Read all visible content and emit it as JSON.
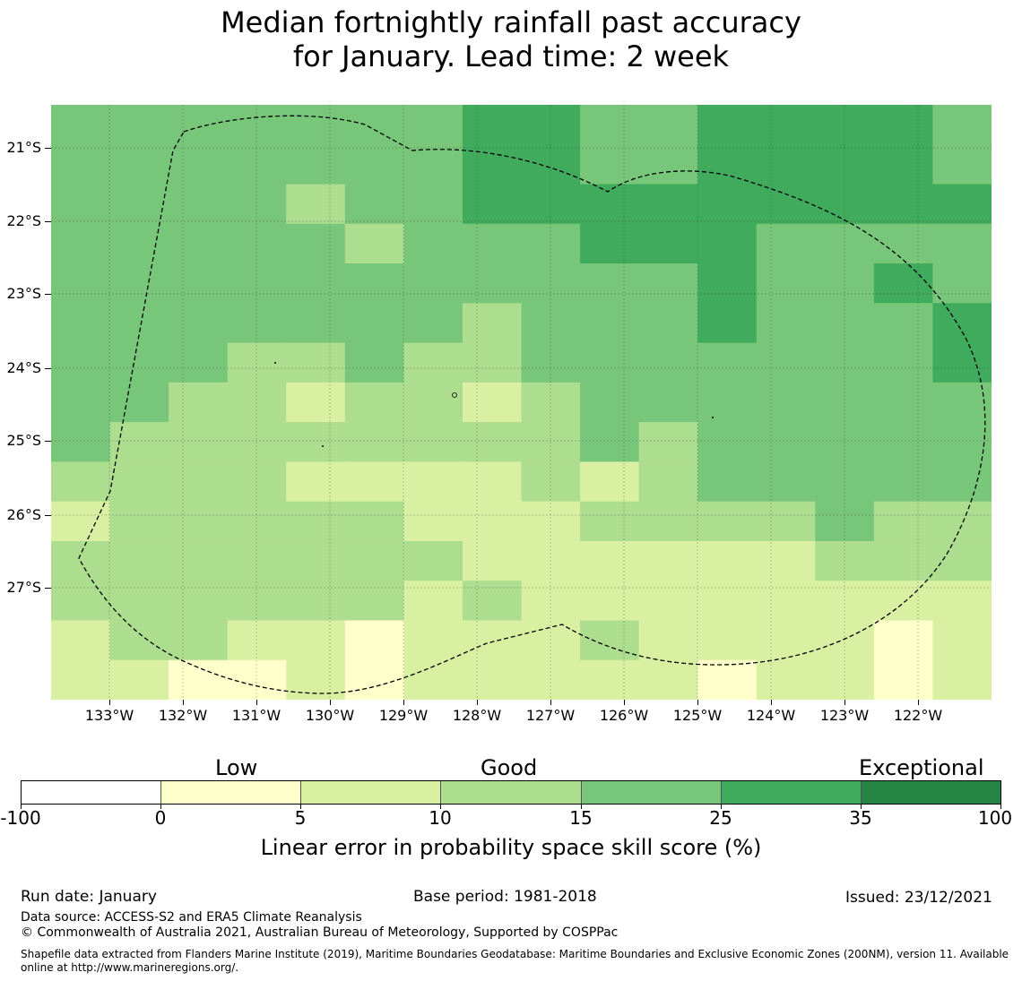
{
  "title": {
    "line1": "Median fortnightly rainfall past accuracy",
    "line2": "for January. Lead time: 2 week"
  },
  "map": {
    "lon_labels": [
      "133°W",
      "132°W",
      "131°W",
      "130°W",
      "129°W",
      "128°W",
      "127°W",
      "126°W",
      "125°W",
      "124°W",
      "123°W",
      "122°W"
    ],
    "lat_labels": [
      "21°S",
      "22°S",
      "23°S",
      "24°S",
      "25°S",
      "26°S",
      "27°S"
    ],
    "boundary_style": "dashed",
    "grid": {
      "columns_lon_west": [
        133.5,
        132.7,
        131.9,
        131.1,
        130.3,
        129.5,
        128.7,
        127.9,
        127.1,
        126.3,
        125.5,
        124.7,
        123.9,
        123.1,
        122.3,
        121.5
      ],
      "rows_lat_south": [
        20.6,
        21.0,
        21.5,
        22.1,
        22.6,
        23.2,
        23.7,
        24.3,
        24.8,
        25.4,
        25.9,
        26.5,
        27.0,
        27.6,
        28.1
      ],
      "skill_class_rows": [
        [
          4,
          4,
          4,
          4,
          4,
          4,
          4,
          5,
          5,
          4,
          4,
          5,
          5,
          5,
          5,
          4
        ],
        [
          4,
          4,
          4,
          4,
          4,
          4,
          4,
          5,
          5,
          4,
          4,
          5,
          5,
          5,
          5,
          4
        ],
        [
          4,
          4,
          4,
          4,
          3,
          4,
          4,
          5,
          5,
          5,
          5,
          5,
          5,
          5,
          5,
          5
        ],
        [
          4,
          4,
          4,
          4,
          4,
          3,
          4,
          4,
          4,
          5,
          5,
          5,
          4,
          4,
          4,
          4
        ],
        [
          4,
          4,
          4,
          4,
          4,
          4,
          4,
          4,
          4,
          4,
          4,
          5,
          4,
          4,
          5,
          4
        ],
        [
          4,
          4,
          4,
          4,
          4,
          4,
          4,
          3,
          4,
          4,
          4,
          5,
          4,
          4,
          4,
          5
        ],
        [
          4,
          4,
          4,
          3,
          3,
          4,
          3,
          3,
          4,
          4,
          4,
          4,
          4,
          4,
          4,
          5
        ],
        [
          4,
          4,
          3,
          3,
          2,
          3,
          3,
          2,
          3,
          4,
          4,
          4,
          4,
          4,
          4,
          4
        ],
        [
          4,
          3,
          3,
          3,
          3,
          3,
          3,
          3,
          3,
          4,
          3,
          4,
          4,
          4,
          4,
          4
        ],
        [
          3,
          3,
          3,
          3,
          2,
          2,
          2,
          2,
          3,
          2,
          3,
          4,
          4,
          4,
          4,
          4
        ],
        [
          2,
          3,
          3,
          3,
          3,
          3,
          2,
          2,
          2,
          3,
          3,
          3,
          3,
          4,
          3,
          3
        ],
        [
          3,
          3,
          3,
          3,
          3,
          3,
          3,
          2,
          2,
          2,
          2,
          2,
          2,
          3,
          3,
          3
        ],
        [
          3,
          3,
          3,
          3,
          3,
          3,
          2,
          3,
          2,
          2,
          2,
          2,
          2,
          2,
          2,
          2
        ],
        [
          2,
          3,
          3,
          2,
          2,
          1,
          2,
          2,
          2,
          3,
          2,
          2,
          2,
          2,
          1,
          2
        ],
        [
          2,
          2,
          1,
          1,
          2,
          1,
          2,
          2,
          2,
          2,
          2,
          1,
          2,
          2,
          1,
          2
        ]
      ]
    }
  },
  "legend": {
    "categories": [
      "Low",
      "Good",
      "Exceptional"
    ],
    "tick_labels": [
      "-100",
      "0",
      "5",
      "10",
      "15",
      "25",
      "35",
      "100"
    ],
    "colors": [
      "#ffffff",
      "#ffffcc",
      "#d9f0a3",
      "#addd8e",
      "#78c679",
      "#41ab5d",
      "#238443"
    ],
    "label": "Linear error in probability space skill score (%)"
  },
  "footer": {
    "run_date": "Run date: January",
    "base_period": "Base period: 1981-2018",
    "issued": "Issued: 23/12/2021",
    "data_source": "Data source: ACCESS-S2 and ERA5 Climate Reanalysis",
    "copyright": "© Commonwealth of Australia 2021, Australian Bureau of Meteorology, Supported by COSPPac",
    "shapefile": "Shapefile data extracted from Flanders Marine Institute (2019), Maritime Boundaries Geodatabase: Maritime Boundaries and Exclusive Economic Zones (200NM), version 11. Available online at http://www.marineregions.org/."
  }
}
